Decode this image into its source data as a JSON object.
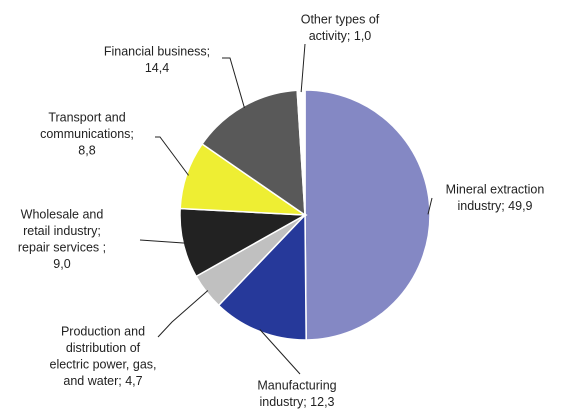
{
  "chart_data": {
    "type": "pie",
    "values": [
      49.9,
      12.3,
      4.7,
      9.0,
      8.8,
      14.4,
      1.0
    ],
    "value_labels": [
      [
        "Mineral extraction",
        "industry; 49,9"
      ],
      [
        "Manufacturing",
        "industry; 12,3"
      ],
      [
        "Production and",
        "distribution of",
        "electric power, gas,",
        "and water; 4,7"
      ],
      [
        "Wholesale and",
        "retail industry;",
        "repair services ;",
        "9,0"
      ],
      [
        "Transport and",
        "communications;",
        "8,8"
      ],
      [
        "Financial business;",
        "14,4"
      ],
      [
        "Other types of",
        "activity; 1,0"
      ]
    ],
    "colors": [
      "#8488c4",
      "#26399a",
      "#c0c0c0",
      "#222222",
      "#eeee33",
      "#595959",
      "#ffffff"
    ]
  }
}
